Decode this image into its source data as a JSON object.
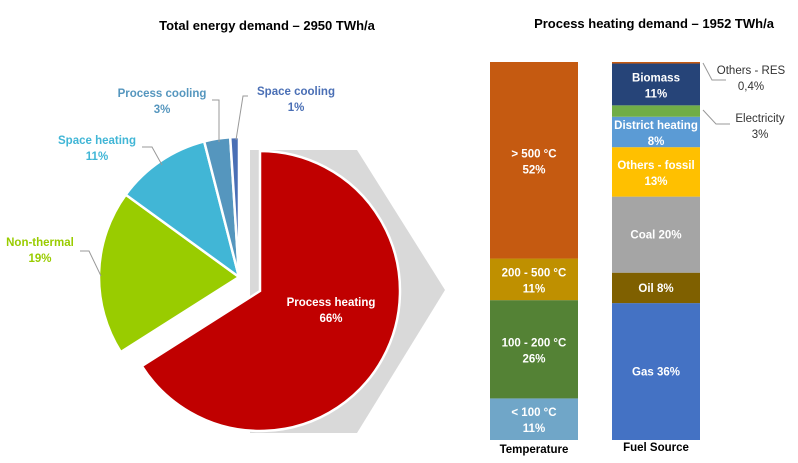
{
  "chart_data": [
    {
      "type": "pie",
      "title": "Total energy demand – 2950 TWh/a",
      "slices": [
        {
          "label": "Process heating",
          "value": 66,
          "value_label": "66%",
          "color": "#C00000",
          "exploded": true
        },
        {
          "label": "Non-thermal",
          "value": 19,
          "value_label": "19%",
          "color": "#99CC00"
        },
        {
          "label": "Space heating",
          "value": 11,
          "value_label": "11%",
          "color": "#41B6D6"
        },
        {
          "label": "Process cooling",
          "value": 3,
          "value_label": "3%",
          "color": "#5596BE"
        },
        {
          "label": "Space cooling",
          "value": 1,
          "value_label": "1%",
          "color": "#4A6FB5"
        }
      ],
      "label_colors": [
        "#FFFFFF",
        "#99CC00",
        "#41B6D6",
        "#5596BE",
        "#4A6FB5"
      ],
      "highlight_color": "#D9D9D9"
    },
    {
      "type": "stacked-bar",
      "title": "Process heating demand – 1952 TWh/a",
      "bars": [
        {
          "category": "Temperature",
          "segments": [
            {
              "label": "< 100 °C",
              "value": 11,
              "value_label": "11%",
              "color": "#70A6C8"
            },
            {
              "label": "100 - 200 °C",
              "value": 26,
              "value_label": "26%",
              "color": "#548235"
            },
            {
              "label": "200 - 500 °C",
              "value": 11,
              "value_label": "11%",
              "color": "#BF9000"
            },
            {
              "label": "> 500 °C",
              "value": 52,
              "value_label": "52%",
              "color": "#C55A11"
            }
          ]
        },
        {
          "category": "Fuel Source",
          "segments": [
            {
              "label": "Gas",
              "value": 36,
              "value_label": "36%",
              "color": "#4472C4",
              "inline": true
            },
            {
              "label": "Oil",
              "value": 8,
              "value_label": "8%",
              "color": "#7F6000",
              "inline": true
            },
            {
              "label": "Coal",
              "value": 20,
              "value_label": "20%",
              "color": "#A5A5A5",
              "inline": true
            },
            {
              "label": "Others - fossil",
              "value": 13,
              "value_label": "13%",
              "color": "#FFC000"
            },
            {
              "label": "District heating",
              "value": 8,
              "value_label": "8%",
              "color": "#5B9BD5"
            },
            {
              "label": "Electricity",
              "value": 3,
              "value_label": "3%",
              "color": "#70AD47",
              "callout": true
            },
            {
              "label": "Biomass",
              "value": 11,
              "value_label": "11%",
              "color": "#264478"
            },
            {
              "label": "Others - RES",
              "value": 0.4,
              "value_label": "0,4%",
              "color": "#C55A11",
              "callout": true
            }
          ]
        }
      ]
    }
  ]
}
